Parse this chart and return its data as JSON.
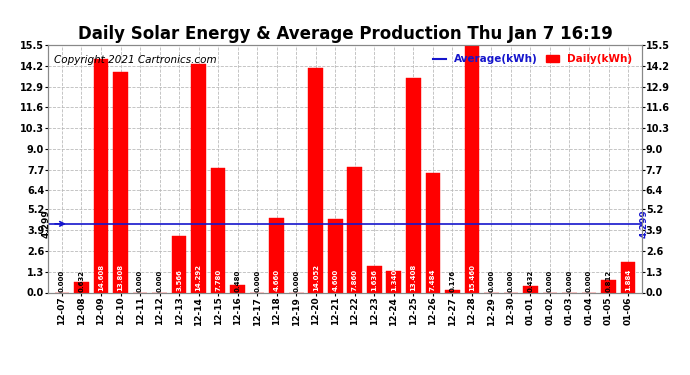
{
  "title": "Daily Solar Energy & Average Production Thu Jan 7 16:19",
  "copyright": "Copyright 2021 Cartronics.com",
  "categories": [
    "12-07",
    "12-08",
    "12-09",
    "12-10",
    "12-11",
    "12-12",
    "12-13",
    "12-14",
    "12-15",
    "12-16",
    "12-17",
    "12-18",
    "12-19",
    "12-20",
    "12-21",
    "12-22",
    "12-23",
    "12-24",
    "12-25",
    "12-26",
    "12-27",
    "12-28",
    "12-29",
    "12-30",
    "01-01",
    "01-02",
    "01-03",
    "01-04",
    "01-05",
    "01-06"
  ],
  "values": [
    0.0,
    0.632,
    14.608,
    13.808,
    0.0,
    0.0,
    3.566,
    14.292,
    7.78,
    0.48,
    0.0,
    4.66,
    0.0,
    14.052,
    4.6,
    7.86,
    1.636,
    1.34,
    13.408,
    7.484,
    0.176,
    15.46,
    0.0,
    0.0,
    0.432,
    0.0,
    0.0,
    0.0,
    0.812,
    1.884
  ],
  "average": 4.299,
  "bar_color": "#FF0000",
  "avg_line_color": "#1515CC",
  "ylim": [
    0.0,
    15.5
  ],
  "yticks": [
    0.0,
    1.3,
    2.6,
    3.9,
    5.2,
    6.4,
    7.7,
    9.0,
    10.3,
    11.6,
    12.9,
    14.2,
    15.5
  ],
  "title_fontsize": 12,
  "copyright_fontsize": 7.5,
  "bg_color": "#FFFFFF",
  "grid_color": "#BBBBBB",
  "legend_avg_label": "Average(kWh)",
  "legend_daily_label": "Daily(kWh)"
}
